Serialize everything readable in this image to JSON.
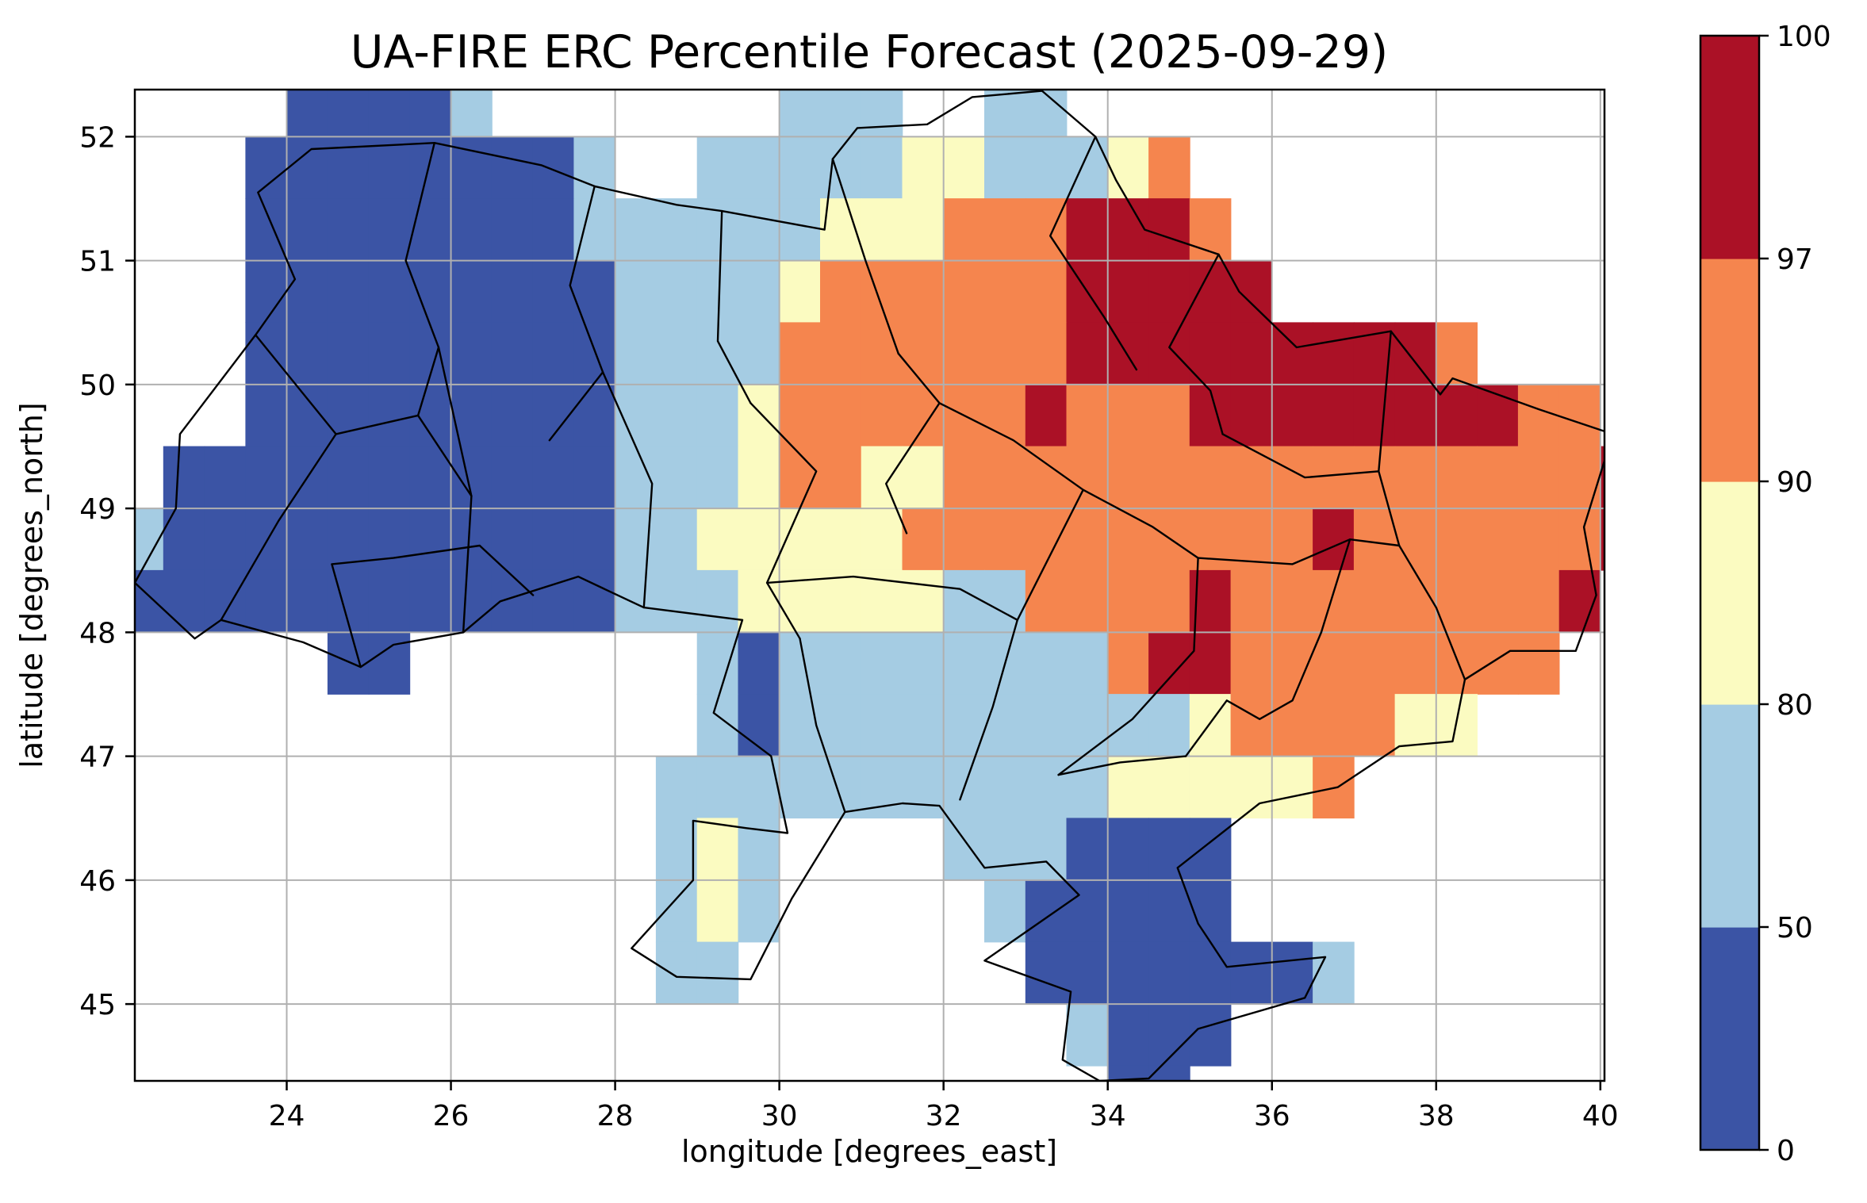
{
  "chart_data": {
    "type": "heatmap",
    "title": "UA-FIRE ERC Percentile Forecast (2025-09-29)",
    "xlabel": "longitude [degrees_east]",
    "ylabel": "latitude [degrees_north]",
    "x_range": [
      22.15,
      40.05
    ],
    "y_range": [
      44.38,
      52.38
    ],
    "x_ticks": [
      "24",
      "26",
      "28",
      "30",
      "32",
      "34",
      "36",
      "38",
      "40"
    ],
    "y_ticks": [
      "45",
      "46",
      "47",
      "48",
      "49",
      "50",
      "51",
      "52"
    ],
    "grid_on": true,
    "colorbar": {
      "position": "right",
      "spacing": "uniform",
      "levels": [
        "0",
        "50",
        "80",
        "90",
        "97",
        "100"
      ]
    },
    "palette": {
      "c1": "#3B54A5",
      "c2": "#A5CCE3",
      "c3": "#FBFBC1",
      "c4": "#F5854E",
      "c5": "#AB1126"
    },
    "value_bins": {
      "1": "0-50 percentile",
      "2": "50-80 percentile",
      "3": "80-90 percentile",
      "4": "90-97 percentile",
      "5": "97-100 percentile"
    },
    "styles": {
      "grid_color": "#b0b0b0",
      "border_color": "#000000",
      "frame_color": "#000000",
      "background": "#ffffff"
    },
    "raster": {
      "lon0": 22.0,
      "lat0": 52.5,
      "dlon": 0.5,
      "dlat": 0.5,
      "rows": [
        "....11112.......222..22..............",
        "...111111112..222223322234...........",
        "...111111112222223334445554..........",
        "...1111111112222344444455555.........",
        "...111111111222244444445555555554....",
        "...111111111222344444454445555555544.",
        ".111111111112223443344444444444444445",
        "2111111111112233333444444444454444445",
        "111111111111222333332244445444444445.",
        ".....11.......212222222245544444444..",
        "..............2122222222223444433....",
        ".............22222222222333334.......",
        ".............232....2221111..........",
        ".............232.....211111..........",
        ".............22.......11111112.......",
        ".......................2111..........",
        "........................11..........."
      ]
    },
    "borders": {
      "outline": [
        [
          23.62,
          50.4
        ],
        [
          24.1,
          50.85
        ],
        [
          23.65,
          51.55
        ],
        [
          24.3,
          51.9
        ],
        [
          25.8,
          51.95
        ],
        [
          27.1,
          51.77
        ],
        [
          27.75,
          51.6
        ],
        [
          28.75,
          51.45
        ],
        [
          29.3,
          51.4
        ],
        [
          30.55,
          51.25
        ],
        [
          30.65,
          51.82
        ],
        [
          30.95,
          52.07
        ],
        [
          31.8,
          52.1
        ],
        [
          32.35,
          52.32
        ],
        [
          33.2,
          52.37
        ],
        [
          33.85,
          52.0
        ],
        [
          34.1,
          51.65
        ],
        [
          34.45,
          51.25
        ],
        [
          35.35,
          51.05
        ],
        [
          35.6,
          50.75
        ],
        [
          36.3,
          50.3
        ],
        [
          37.45,
          50.43
        ],
        [
          38.05,
          49.92
        ],
        [
          38.2,
          50.05
        ],
        [
          39.25,
          49.8
        ],
        [
          40.15,
          49.6
        ],
        [
          39.8,
          48.85
        ],
        [
          39.95,
          48.3
        ],
        [
          39.7,
          47.85
        ],
        [
          38.9,
          47.85
        ],
        [
          38.35,
          47.62
        ],
        [
          38.2,
          47.12
        ],
        [
          37.55,
          47.08
        ],
        [
          36.8,
          46.75
        ],
        [
          35.85,
          46.62
        ],
        [
          34.85,
          46.1
        ],
        [
          35.1,
          45.65
        ],
        [
          35.45,
          45.3
        ],
        [
          36.65,
          45.38
        ],
        [
          36.4,
          45.05
        ],
        [
          35.1,
          44.8
        ],
        [
          34.5,
          44.4
        ],
        [
          33.9,
          44.38
        ],
        [
          33.45,
          44.55
        ],
        [
          33.55,
          45.1
        ],
        [
          32.5,
          45.35
        ],
        [
          33.65,
          45.88
        ],
        [
          33.25,
          46.15
        ],
        [
          32.5,
          46.1
        ],
        [
          31.95,
          46.6
        ],
        [
          31.5,
          46.62
        ],
        [
          30.8,
          46.55
        ],
        [
          30.15,
          45.85
        ],
        [
          29.65,
          45.2
        ],
        [
          28.75,
          45.22
        ],
        [
          28.2,
          45.45
        ],
        [
          28.95,
          46.0
        ],
        [
          28.95,
          46.48
        ],
        [
          29.6,
          46.42
        ],
        [
          30.1,
          46.38
        ],
        [
          29.9,
          47.0
        ],
        [
          29.2,
          47.35
        ],
        [
          29.55,
          48.1
        ],
        [
          28.35,
          48.2
        ],
        [
          27.55,
          48.45
        ],
        [
          26.6,
          48.25
        ],
        [
          26.15,
          48.0
        ],
        [
          25.3,
          47.9
        ],
        [
          24.9,
          47.72
        ],
        [
          24.2,
          47.92
        ],
        [
          23.2,
          48.1
        ],
        [
          22.88,
          47.95
        ],
        [
          22.15,
          48.4
        ],
        [
          22.65,
          49.0
        ],
        [
          22.7,
          49.6
        ],
        [
          23.62,
          50.4
        ]
      ],
      "internal": [
        [
          [
            25.8,
            51.95
          ],
          [
            25.45,
            51.0
          ],
          [
            25.85,
            50.3
          ],
          [
            25.6,
            49.75
          ]
        ],
        [
          [
            27.75,
            51.6
          ],
          [
            27.45,
            50.8
          ],
          [
            27.85,
            50.1
          ],
          [
            27.2,
            49.55
          ]
        ],
        [
          [
            29.3,
            51.4
          ],
          [
            29.25,
            50.35
          ],
          [
            29.65,
            49.85
          ]
        ],
        [
          [
            30.65,
            51.82
          ],
          [
            31.05,
            51.0
          ],
          [
            31.45,
            50.25
          ]
        ],
        [
          [
            33.85,
            52.0
          ],
          [
            33.3,
            51.2
          ],
          [
            33.95,
            50.55
          ],
          [
            34.35,
            50.12
          ]
        ],
        [
          [
            35.35,
            51.05
          ],
          [
            34.75,
            50.3
          ],
          [
            35.25,
            49.95
          ],
          [
            35.4,
            49.6
          ]
        ],
        [
          [
            23.62,
            50.4
          ],
          [
            24.6,
            49.6
          ],
          [
            23.9,
            48.9
          ],
          [
            23.2,
            48.1
          ]
        ],
        [
          [
            25.85,
            50.3
          ],
          [
            26.25,
            49.1
          ],
          [
            26.15,
            48.0
          ]
        ],
        [
          [
            24.6,
            49.6
          ],
          [
            25.6,
            49.75
          ],
          [
            26.25,
            49.1
          ]
        ],
        [
          [
            24.9,
            47.72
          ],
          [
            24.55,
            48.55
          ],
          [
            25.3,
            48.6
          ],
          [
            26.35,
            48.7
          ],
          [
            27.0,
            48.3
          ]
        ],
        [
          [
            27.85,
            50.1
          ],
          [
            28.45,
            49.2
          ],
          [
            28.35,
            48.2
          ]
        ],
        [
          [
            29.65,
            49.85
          ],
          [
            30.45,
            49.3
          ],
          [
            29.85,
            48.4
          ],
          [
            30.25,
            47.95
          ]
        ],
        [
          [
            31.45,
            50.25
          ],
          [
            31.95,
            49.85
          ],
          [
            31.3,
            49.2
          ],
          [
            31.55,
            48.8
          ]
        ],
        [
          [
            31.95,
            49.85
          ],
          [
            32.85,
            49.55
          ],
          [
            33.7,
            49.15
          ],
          [
            34.55,
            48.85
          ],
          [
            35.1,
            48.6
          ],
          [
            35.05,
            47.85
          ],
          [
            34.3,
            47.3
          ],
          [
            33.4,
            46.85
          ]
        ],
        [
          [
            29.85,
            48.4
          ],
          [
            30.9,
            48.45
          ],
          [
            32.2,
            48.35
          ],
          [
            32.9,
            48.1
          ],
          [
            33.7,
            49.15
          ]
        ],
        [
          [
            30.25,
            47.95
          ],
          [
            30.45,
            47.25
          ],
          [
            30.8,
            46.55
          ]
        ],
        [
          [
            32.9,
            48.1
          ],
          [
            32.6,
            47.4
          ],
          [
            32.2,
            46.65
          ]
        ],
        [
          [
            35.4,
            49.6
          ],
          [
            36.4,
            49.25
          ],
          [
            37.3,
            49.3
          ]
        ],
        [
          [
            37.45,
            50.43
          ],
          [
            37.3,
            49.3
          ],
          [
            37.55,
            48.7
          ],
          [
            38.0,
            48.2
          ],
          [
            38.35,
            47.62
          ]
        ],
        [
          [
            35.1,
            48.6
          ],
          [
            36.25,
            48.55
          ],
          [
            36.95,
            48.75
          ],
          [
            37.55,
            48.7
          ]
        ],
        [
          [
            36.6,
            48.0
          ],
          [
            36.25,
            47.45
          ],
          [
            35.85,
            47.3
          ],
          [
            35.45,
            47.45
          ],
          [
            34.95,
            47.0
          ]
        ],
        [
          [
            33.4,
            46.85
          ],
          [
            34.15,
            46.95
          ],
          [
            34.95,
            47.0
          ]
        ],
        [
          [
            36.95,
            48.75
          ],
          [
            36.6,
            48.0
          ]
        ]
      ]
    }
  }
}
